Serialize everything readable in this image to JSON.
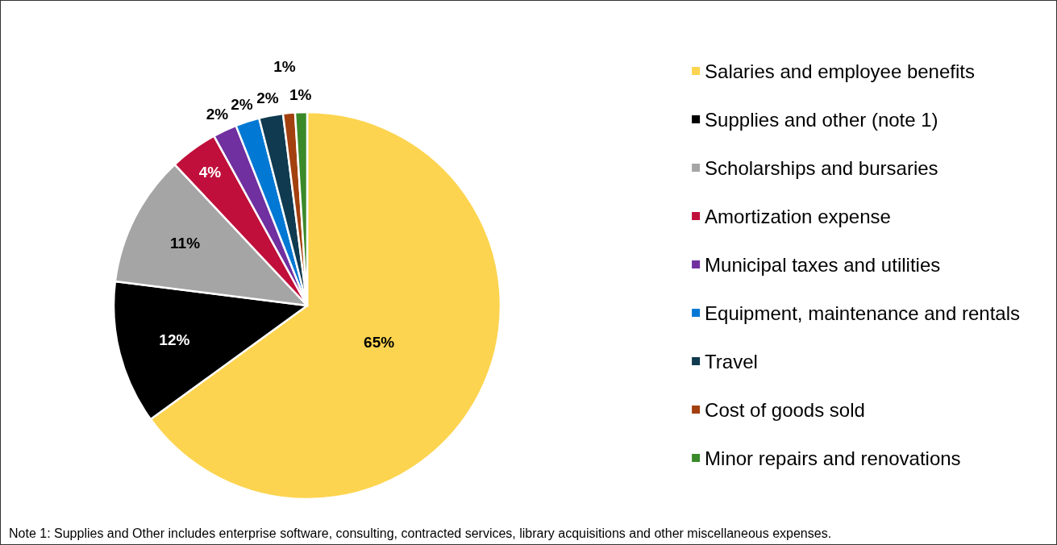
{
  "chart_data": {
    "type": "pie",
    "categories": [
      "Salaries and employee benefits",
      "Supplies and other (note 1)",
      "Scholarships and bursaries",
      "Amortization expense",
      "Municipal taxes and utilities",
      "Equipment, maintenance and rentals",
      "Travel",
      "Cost of goods sold",
      "Minor repairs and renovations"
    ],
    "values": [
      65,
      12,
      11,
      4,
      2,
      2,
      2,
      1,
      1
    ],
    "value_labels": [
      "65%",
      "12%",
      "11%",
      "4%",
      "2%",
      "2%",
      "2%",
      "1%",
      "1%"
    ],
    "colors": [
      "#fdd44f",
      "#000000",
      "#a5a5a5",
      "#c00f3a",
      "#7030a0",
      "#0078d4",
      "#0f3a4f",
      "#a3400f",
      "#3a8a2a"
    ],
    "legend": "right",
    "annotations": [
      "Note 1: Supplies and Other includes enterprise software, consulting, contracted services, library acquisitions and other miscellaneous expenses."
    ]
  }
}
